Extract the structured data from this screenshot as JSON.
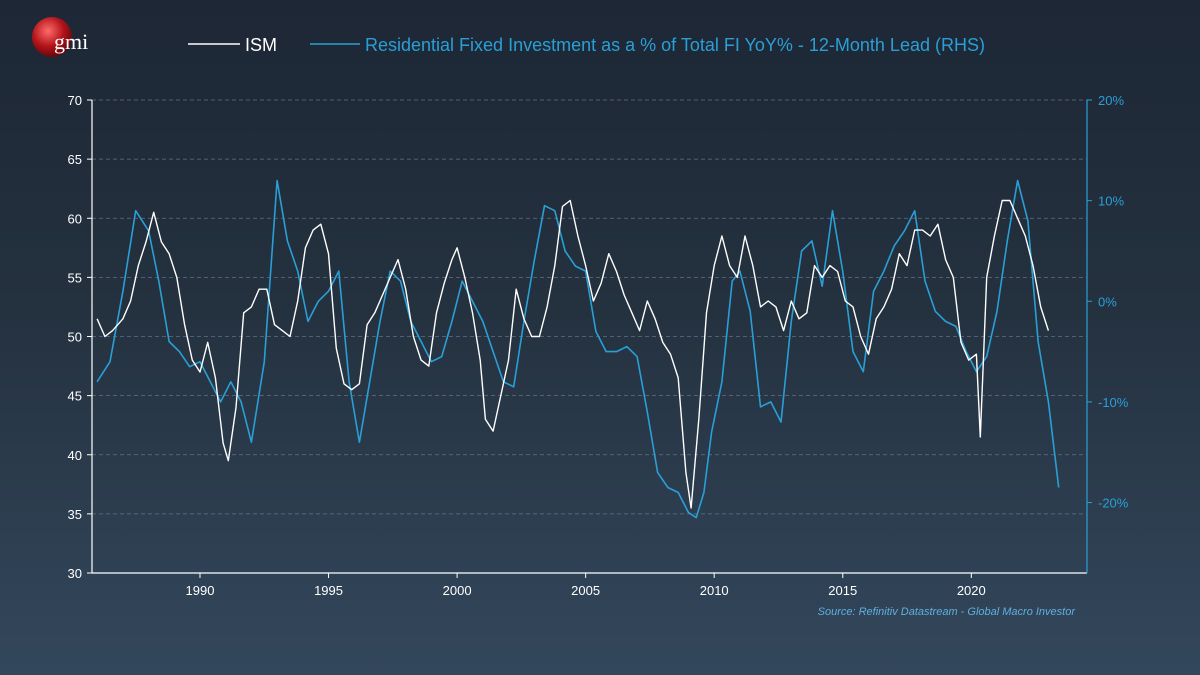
{
  "logo": {
    "text": "gmi"
  },
  "source": "Source: Refinitiv Datastream - Global Macro Investor",
  "colors": {
    "ism": "#ffffff",
    "resi": "#2a9fd6",
    "grid": "#6f8196",
    "left_axis": "#ffffff",
    "right_axis": "#2a9fd6"
  },
  "chart_data": {
    "type": "line",
    "legend": {
      "placement": "top-center"
    },
    "grid": "horizontal-dashed",
    "x_axis": {
      "range": [
        1985.8,
        2024.5
      ],
      "ticks": [
        "1990",
        "1995",
        "2000",
        "2005",
        "2010",
        "2015",
        "2020"
      ]
    },
    "y_left": {
      "range": [
        30,
        70
      ],
      "ticks": [
        "30",
        "35",
        "40",
        "45",
        "50",
        "55",
        "60",
        "65",
        "70"
      ]
    },
    "y_right": {
      "range": [
        -27,
        20
      ],
      "ticks": [
        "-20%",
        "-10%",
        "0%",
        "10%",
        "20%"
      ],
      "tick_values": [
        -20,
        -10,
        0,
        10,
        20
      ]
    },
    "series": [
      {
        "name": "ISM",
        "axis": "left",
        "x": [
          1986.0,
          1986.3,
          1986.6,
          1987.0,
          1987.3,
          1987.6,
          1987.9,
          1988.2,
          1988.5,
          1988.8,
          1989.1,
          1989.4,
          1989.7,
          1990.0,
          1990.3,
          1990.6,
          1990.9,
          1991.1,
          1991.4,
          1991.7,
          1992.0,
          1992.3,
          1992.6,
          1992.9,
          1993.2,
          1993.5,
          1993.8,
          1994.1,
          1994.4,
          1994.7,
          1995.0,
          1995.3,
          1995.6,
          1995.9,
          1996.2,
          1996.5,
          1996.8,
          1997.1,
          1997.4,
          1997.7,
          1998.0,
          1998.3,
          1998.6,
          1998.9,
          1999.2,
          1999.5,
          1999.8,
          2000.0,
          2000.3,
          2000.6,
          2000.9,
          2001.1,
          2001.4,
          2001.7,
          2002.0,
          2002.3,
          2002.6,
          2002.9,
          2003.2,
          2003.5,
          2003.8,
          2004.1,
          2004.4,
          2004.7,
          2005.0,
          2005.3,
          2005.6,
          2005.9,
          2006.2,
          2006.5,
          2006.8,
          2007.1,
          2007.4,
          2007.7,
          2008.0,
          2008.3,
          2008.6,
          2008.9,
          2009.1,
          2009.4,
          2009.7,
          2010.0,
          2010.3,
          2010.6,
          2010.9,
          2011.2,
          2011.5,
          2011.8,
          2012.1,
          2012.4,
          2012.7,
          2013.0,
          2013.3,
          2013.6,
          2013.9,
          2014.2,
          2014.5,
          2014.8,
          2015.1,
          2015.4,
          2015.7,
          2016.0,
          2016.3,
          2016.6,
          2016.9,
          2017.2,
          2017.5,
          2017.8,
          2018.1,
          2018.4,
          2018.7,
          2019.0,
          2019.3,
          2019.6,
          2019.9,
          2020.2,
          2020.35,
          2020.6,
          2020.9,
          2021.2,
          2021.5,
          2021.8,
          2022.1,
          2022.4,
          2022.7,
          2023.0
        ],
        "values": [
          51.5,
          50.0,
          50.5,
          51.5,
          53.0,
          56.0,
          58.0,
          60.5,
          58.0,
          57.0,
          55.0,
          51.0,
          48.0,
          47.0,
          49.5,
          46.5,
          41.0,
          39.5,
          44.0,
          52.0,
          52.5,
          54.0,
          54.0,
          51.0,
          50.5,
          50.0,
          53.0,
          57.5,
          59.0,
          59.5,
          57.0,
          49.0,
          46.0,
          45.5,
          46.0,
          51.0,
          52.0,
          53.5,
          55.0,
          56.5,
          54.0,
          50.0,
          48.0,
          47.5,
          52.0,
          54.5,
          56.5,
          57.5,
          55.0,
          52.0,
          48.0,
          43.0,
          42.0,
          45.0,
          48.0,
          54.0,
          51.5,
          50.0,
          50.0,
          52.5,
          56.0,
          61.0,
          61.5,
          58.5,
          56.0,
          53.0,
          54.5,
          57.0,
          55.5,
          53.5,
          52.0,
          50.5,
          53.0,
          51.5,
          49.5,
          48.5,
          46.5,
          38.5,
          35.5,
          43.0,
          52.0,
          56.0,
          58.5,
          56.0,
          55.0,
          58.5,
          56.0,
          52.5,
          53.0,
          52.5,
          50.5,
          53.0,
          51.5,
          52.0,
          56.0,
          55.0,
          56.0,
          55.5,
          53.0,
          52.5,
          50.0,
          48.5,
          51.5,
          52.5,
          54.0,
          57.0,
          56.0,
          59.0,
          59.0,
          58.5,
          59.5,
          56.5,
          55.0,
          49.5,
          48.0,
          48.5,
          41.5,
          55.0,
          58.5,
          61.5,
          61.5,
          60.0,
          58.5,
          56.0,
          52.5,
          50.5
        ]
      },
      {
        "name": "Residential Fixed Investment as a % of Total FI YoY% - 12-Month Lead (RHS)",
        "axis": "right",
        "x": [
          1986.0,
          1986.5,
          1987.0,
          1987.5,
          1988.0,
          1988.4,
          1988.8,
          1989.2,
          1989.6,
          1990.0,
          1990.4,
          1990.8,
          1991.2,
          1991.6,
          1992.0,
          1992.5,
          1993.0,
          1993.4,
          1993.8,
          1994.2,
          1994.6,
          1995.0,
          1995.4,
          1995.8,
          1996.2,
          1996.6,
          1997.0,
          1997.4,
          1997.8,
          1998.2,
          1998.6,
          1999.0,
          1999.4,
          1999.8,
          2000.2,
          2000.6,
          2001.0,
          2001.4,
          2001.8,
          2002.2,
          2002.6,
          2003.0,
          2003.4,
          2003.8,
          2004.2,
          2004.6,
          2005.0,
          2005.4,
          2005.8,
          2006.2,
          2006.6,
          2007.0,
          2007.4,
          2007.8,
          2008.2,
          2008.6,
          2009.0,
          2009.3,
          2009.6,
          2009.9,
          2010.3,
          2010.7,
          2011.0,
          2011.4,
          2011.8,
          2012.2,
          2012.6,
          2013.0,
          2013.4,
          2013.8,
          2014.2,
          2014.6,
          2015.0,
          2015.4,
          2015.8,
          2016.2,
          2016.6,
          2017.0,
          2017.4,
          2017.8,
          2018.2,
          2018.6,
          2019.0,
          2019.4,
          2019.8,
          2020.2,
          2020.6,
          2021.0,
          2021.4,
          2021.8,
          2022.2,
          2022.6,
          2023.0,
          2023.4
        ],
        "values": [
          -8.0,
          -6.0,
          1.0,
          9.0,
          7.0,
          2.0,
          -4.0,
          -5.0,
          -6.5,
          -6.0,
          -8.0,
          -10.0,
          -8.0,
          -10.0,
          -14.0,
          -6.0,
          12.0,
          6.0,
          3.0,
          -2.0,
          0.0,
          1.0,
          3.0,
          -8.0,
          -14.0,
          -8.0,
          -2.0,
          3.0,
          2.0,
          -2.0,
          -4.0,
          -6.0,
          -5.5,
          -2.0,
          2.0,
          0.0,
          -2.0,
          -5.0,
          -8.0,
          -8.5,
          -2.0,
          4.0,
          9.5,
          9.0,
          5.0,
          3.5,
          3.0,
          -3.0,
          -5.0,
          -5.0,
          -4.5,
          -5.5,
          -11.0,
          -17.0,
          -18.5,
          -19.0,
          -21.0,
          -21.5,
          -19.0,
          -13.0,
          -8.0,
          2.0,
          3.0,
          -1.0,
          -10.5,
          -10.0,
          -12.0,
          -2.0,
          5.0,
          6.0,
          1.5,
          9.0,
          3.0,
          -5.0,
          -7.0,
          1.0,
          3.0,
          5.5,
          7.0,
          9.0,
          2.0,
          -1.0,
          -2.0,
          -2.5,
          -5.0,
          -7.0,
          -5.5,
          -1.0,
          6.0,
          12.0,
          8.0,
          -4.0,
          -10.0,
          -18.5
        ]
      }
    ]
  }
}
